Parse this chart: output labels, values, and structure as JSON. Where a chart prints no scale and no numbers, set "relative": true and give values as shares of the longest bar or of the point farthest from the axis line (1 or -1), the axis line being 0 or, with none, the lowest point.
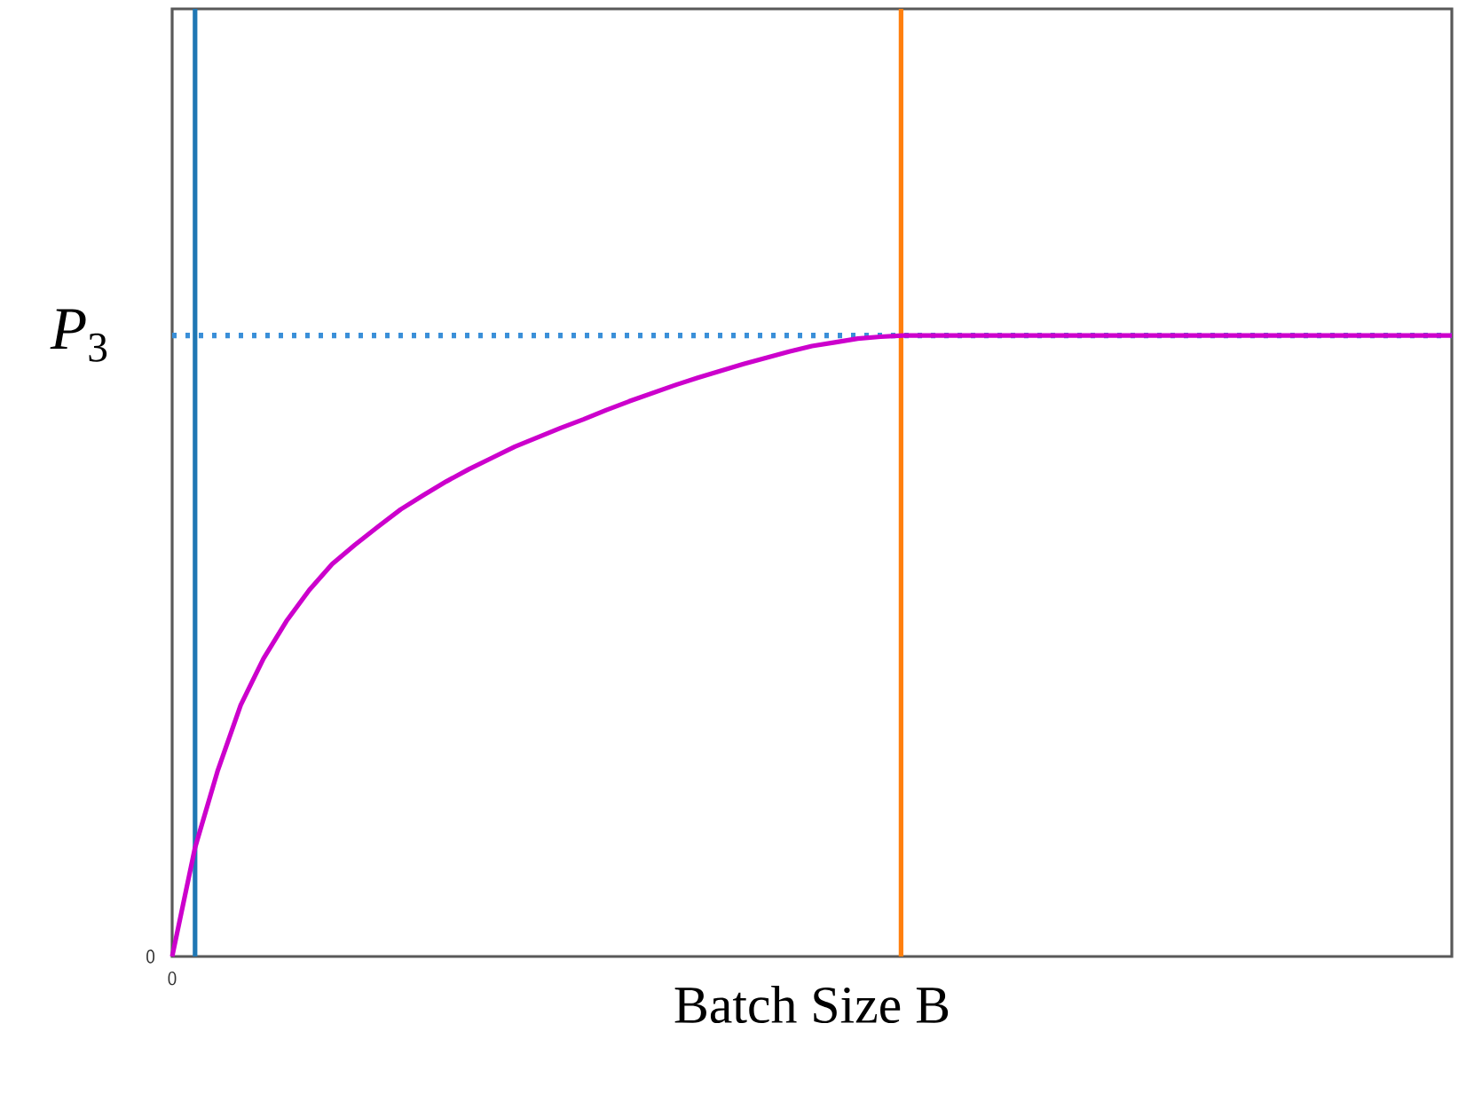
{
  "chart_data": {
    "type": "line",
    "xlabel": "Batch Size B",
    "relative": true,
    "categories": [
      null,
      null,
      null,
      null,
      null,
      null,
      null,
      null,
      null,
      null,
      null,
      null,
      null,
      null,
      null,
      null,
      null,
      null,
      null,
      null,
      null,
      null,
      null,
      null,
      null,
      null,
      null,
      null,
      null,
      null,
      null,
      null,
      null,
      null,
      null,
      null,
      null,
      null,
      null,
      null,
      null,
      null,
      null,
      null,
      null,
      null,
      null,
      null,
      null,
      null,
      null,
      null,
      null,
      null,
      null,
      null,
      null
    ],
    "series": [
      {
        "color": "#cc00cc",
        "values": [
          0,
          0.175,
          0.3,
          0.405,
          0.48,
          0.54,
          0.59,
          0.632,
          0.663,
          0.692,
          0.72,
          0.743,
          0.765,
          0.785,
          0.803,
          0.821,
          0.836,
          0.851,
          0.865,
          0.88,
          0.894,
          0.907,
          0.92,
          0.932,
          0.943,
          0.954,
          0.964,
          0.974,
          0.983,
          0.989,
          0.995,
          0.998,
          1,
          1,
          1,
          1,
          1,
          1,
          1,
          1,
          1,
          1,
          1,
          1,
          1,
          1,
          1,
          1,
          1,
          1,
          1,
          1,
          1,
          1,
          1,
          1,
          1
        ]
      }
    ],
    "annotations": [
      "0",
      "0"
    ],
    "ref_lines": [
      {
        "axis": "y",
        "value": 1,
        "label": "*P*$_{3}$",
        "color": "#3a8fd8",
        "line_style": "dotted"
      }
    ]
  }
}
